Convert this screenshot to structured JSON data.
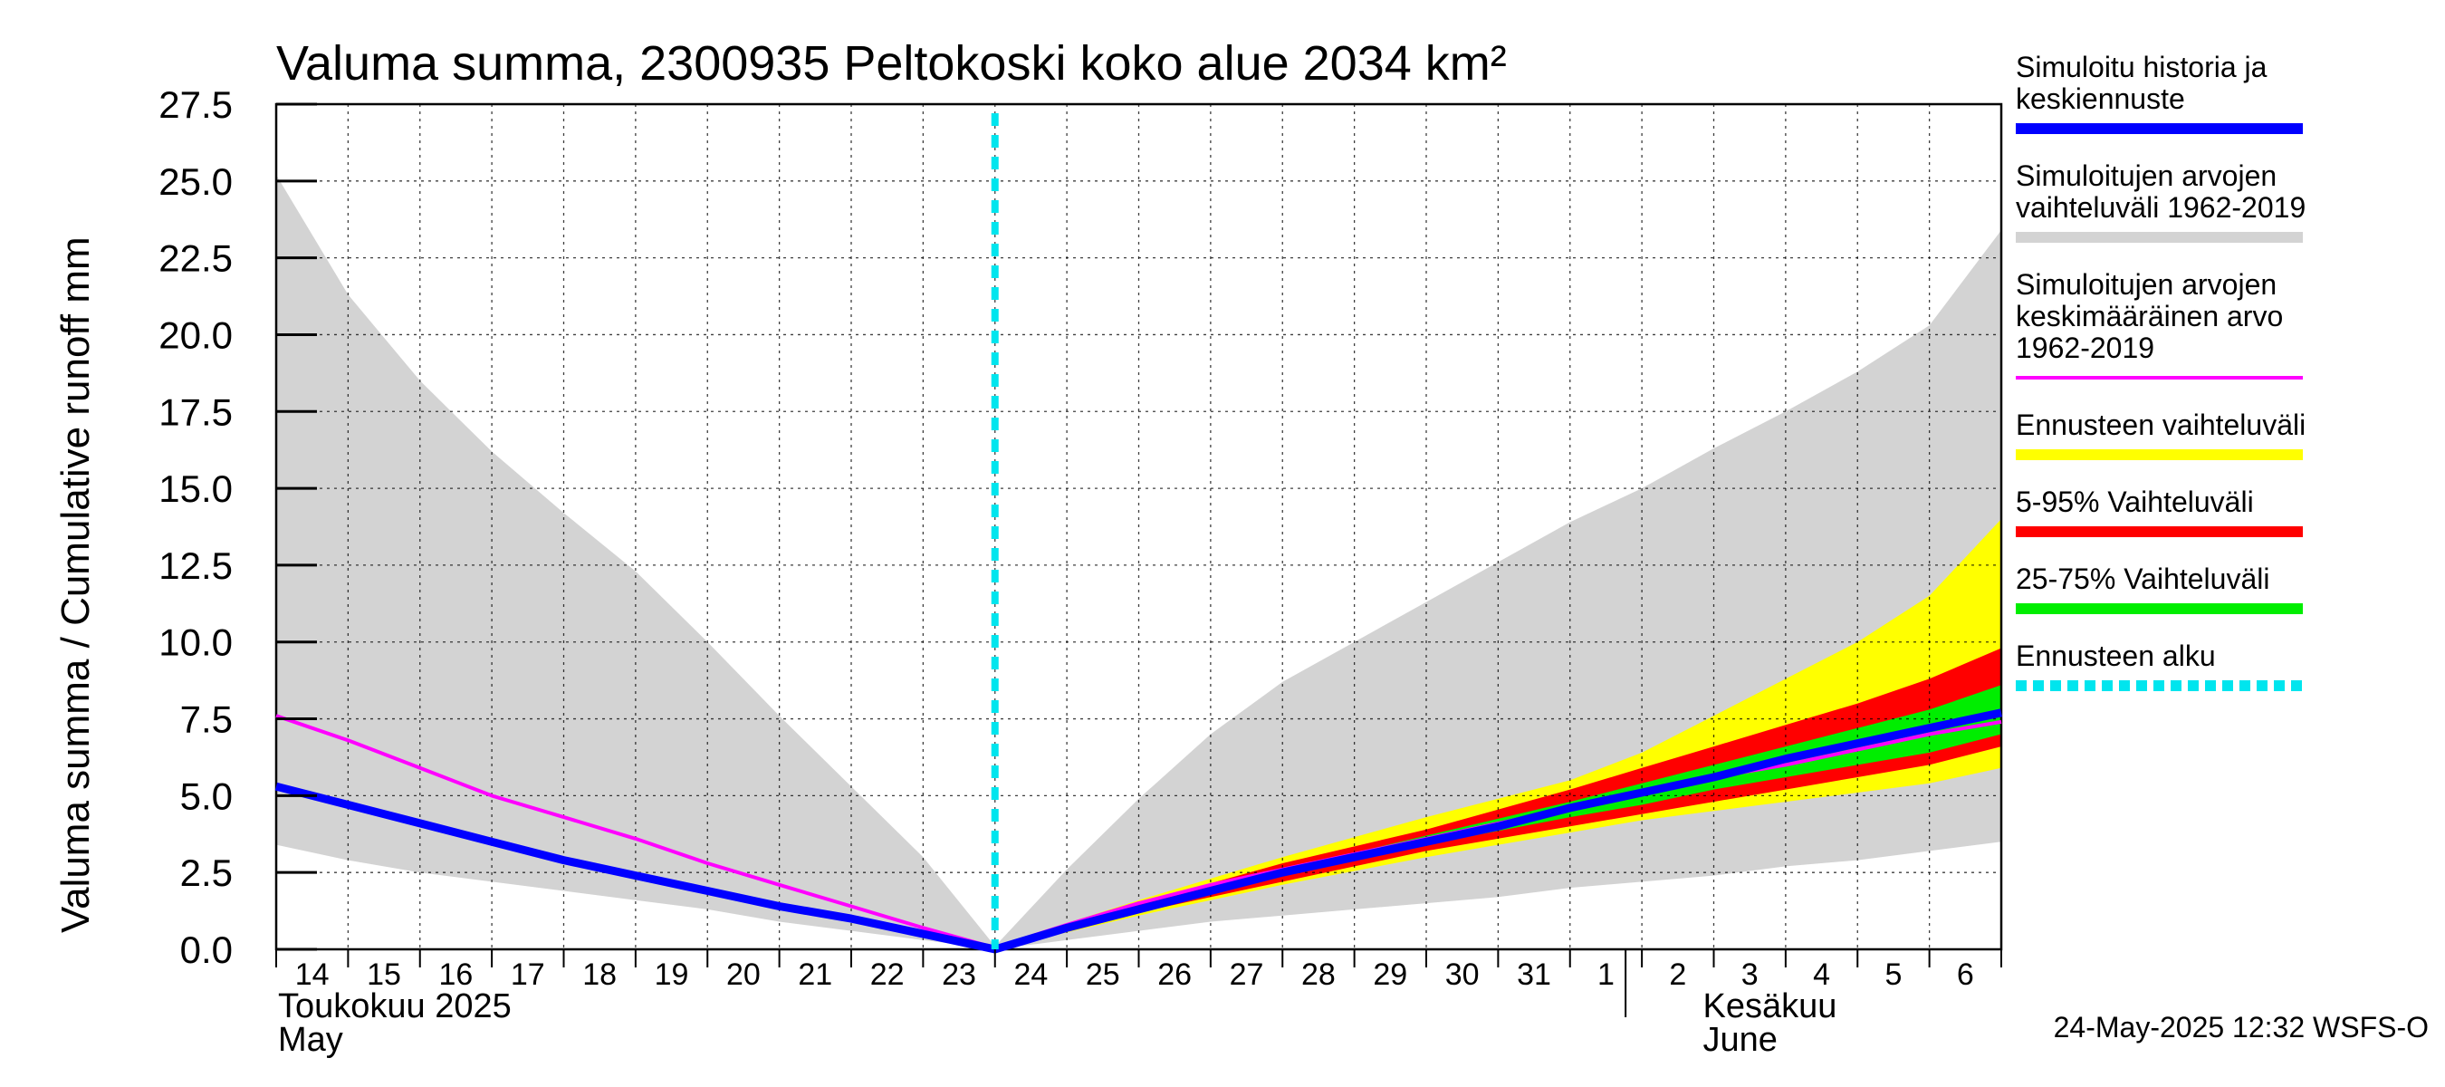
{
  "chart_data": {
    "type": "area",
    "title": "Valuma summa, 2300935 Peltokoski koko alue 2034 km²",
    "ylabel": "Valuma summa / Cumulative runoff    mm",
    "ylim": [
      0,
      27.5
    ],
    "yticks": [
      "0.0",
      "2.5",
      "5.0",
      "7.5",
      "10.0",
      "12.5",
      "15.0",
      "17.5",
      "20.0",
      "22.5",
      "25.0",
      "27.5"
    ],
    "x_range_days": [
      0,
      24
    ],
    "day_labels": [
      "14",
      "15",
      "16",
      "17",
      "18",
      "19",
      "20",
      "21",
      "22",
      "23",
      "24",
      "25",
      "26",
      "27",
      "28",
      "29",
      "30",
      "31",
      "1",
      "2",
      "3",
      "4",
      "5",
      "6"
    ],
    "month_labels": [
      {
        "fi": "Toukokuu  2025",
        "en": "May",
        "day": 0
      },
      {
        "fi": "Kesäkuu",
        "en": "June",
        "day": 19
      }
    ],
    "forecast_start_day": 10,
    "series": [
      {
        "name": "Simuloitujen arvojen vaihteluväli 1962-2019",
        "kind": "band",
        "color": "#d3d3d3",
        "x": [
          0,
          1,
          2,
          3,
          4,
          5,
          6,
          7,
          8,
          9,
          10,
          11,
          12,
          13,
          14,
          15,
          16,
          17,
          18,
          19,
          20,
          21,
          22,
          23,
          24
        ],
        "upper": [
          25.2,
          21.3,
          18.5,
          16.2,
          14.2,
          12.3,
          10.0,
          7.6,
          5.3,
          3.0,
          0.1,
          2.6,
          4.9,
          7.0,
          8.7,
          10.0,
          11.3,
          12.6,
          13.9,
          15.0,
          16.3,
          17.5,
          18.8,
          20.3,
          23.4
        ],
        "lower": [
          3.4,
          2.9,
          2.5,
          2.2,
          1.9,
          1.6,
          1.3,
          0.9,
          0.6,
          0.3,
          0.0,
          0.3,
          0.6,
          0.9,
          1.1,
          1.3,
          1.5,
          1.7,
          2.0,
          2.2,
          2.4,
          2.7,
          2.9,
          3.2,
          3.5
        ]
      },
      {
        "name": "Ennusteen vaihteluväli",
        "kind": "band",
        "color": "#ffff00",
        "x": [
          10,
          12,
          14,
          16,
          18,
          19,
          20,
          21,
          22,
          23,
          24
        ],
        "upper": [
          0.1,
          1.6,
          3.0,
          4.3,
          5.5,
          6.4,
          7.6,
          8.8,
          10.0,
          11.5,
          14.0
        ],
        "lower": [
          0.0,
          1.1,
          2.1,
          3.0,
          3.8,
          4.2,
          4.5,
          4.8,
          5.1,
          5.4,
          5.9
        ]
      },
      {
        "name": "5-95% Vaihteluväli",
        "kind": "band",
        "color": "#ff0000",
        "x": [
          10,
          12,
          14,
          16,
          18,
          19,
          20,
          21,
          22,
          23,
          24
        ],
        "upper": [
          0.1,
          1.5,
          2.8,
          3.9,
          5.2,
          5.9,
          6.6,
          7.3,
          8.0,
          8.8,
          9.8
        ],
        "lower": [
          0.0,
          1.2,
          2.2,
          3.2,
          4.0,
          4.4,
          4.8,
          5.2,
          5.6,
          6.0,
          6.6
        ]
      },
      {
        "name": "25-75% Vaihteluväli",
        "kind": "band",
        "color": "#00ee00",
        "x": [
          10,
          12,
          14,
          16,
          18,
          19,
          20,
          21,
          22,
          23,
          24
        ],
        "upper": [
          0.1,
          1.4,
          2.6,
          3.7,
          4.8,
          5.4,
          6.0,
          6.6,
          7.2,
          7.8,
          8.6
        ],
        "lower": [
          0.0,
          1.3,
          2.4,
          3.4,
          4.3,
          4.7,
          5.2,
          5.6,
          6.0,
          6.4,
          7.0
        ]
      },
      {
        "name": "Simuloitujen arvojen keskimääräinen arvo 1962-2019",
        "kind": "line",
        "color": "#ff00ff",
        "width": 4,
        "x": [
          0,
          1,
          2,
          3,
          4,
          5,
          6,
          7,
          8,
          9,
          10,
          11,
          12,
          13,
          14,
          15,
          16,
          17,
          18,
          19,
          20,
          21,
          22,
          23,
          24
        ],
        "y": [
          7.6,
          6.8,
          5.9,
          5.0,
          4.3,
          3.6,
          2.8,
          2.1,
          1.4,
          0.7,
          0.05,
          0.8,
          1.5,
          2.1,
          2.6,
          3.1,
          3.6,
          4.1,
          4.6,
          5.1,
          5.6,
          6.0,
          6.5,
          7.0,
          7.4
        ]
      },
      {
        "name": "Simuloitu historia ja keskiennuste",
        "kind": "line",
        "color": "#0000ff",
        "width": 9,
        "x": [
          0,
          1,
          2,
          3,
          4,
          5,
          6,
          7,
          8,
          9,
          10,
          11,
          12,
          13,
          14,
          15,
          16,
          17,
          18,
          19,
          20,
          21,
          22,
          23,
          24
        ],
        "y": [
          5.3,
          4.7,
          4.1,
          3.5,
          2.9,
          2.4,
          1.9,
          1.4,
          1.0,
          0.5,
          0.0,
          0.7,
          1.3,
          1.9,
          2.5,
          3.0,
          3.5,
          4.0,
          4.6,
          5.1,
          5.6,
          6.2,
          6.7,
          7.2,
          7.7
        ]
      }
    ]
  },
  "legend": {
    "items": [
      {
        "lines": [
          "Simuloitu historia ja",
          "keskiennuste"
        ],
        "color": "#0000ff",
        "style": "solid"
      },
      {
        "lines": [
          "Simuloitujen arvojen",
          "vaihteluväli 1962-2019"
        ],
        "color": "#d3d3d3",
        "style": "solid"
      },
      {
        "lines": [
          "Simuloitujen arvojen",
          "keskimääräinen arvo",
          "   1962-2019"
        ],
        "color": "#ff00ff",
        "style": "thin"
      },
      {
        "lines": [
          "Ennusteen vaihteluväli"
        ],
        "color": "#ffff00",
        "style": "solid"
      },
      {
        "lines": [
          "5-95% Vaihteluväli"
        ],
        "color": "#ff0000",
        "style": "solid"
      },
      {
        "lines": [
          "25-75% Vaihteluväli"
        ],
        "color": "#00ee00",
        "style": "solid"
      },
      {
        "lines": [
          "Ennusteen alku"
        ],
        "color": "#00e5ee",
        "style": "dashed"
      }
    ]
  },
  "footer": "24-May-2025 12:32 WSFS-O"
}
